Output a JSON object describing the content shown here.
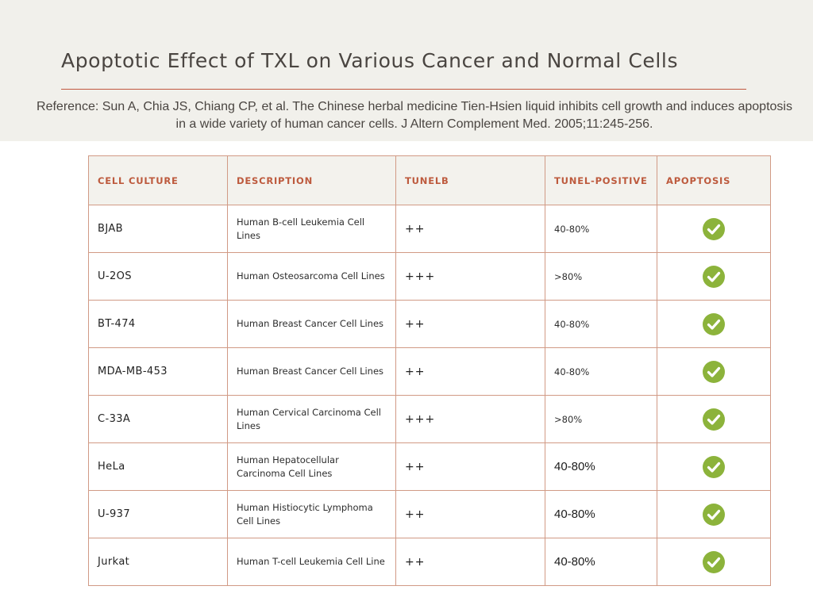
{
  "page": {
    "title": "Apoptotic Effect of TXL on Various Cancer and Normal Cells",
    "reference": "Reference: Sun A, Chia JS, Chiang CP, et al. The Chinese herbal medicine Tien-Hsien liquid inhibits cell growth and induces apoptosis in a wide variety of human cancer cells. J Altern Complement Med. 2005;11:245-256."
  },
  "table": {
    "headers": {
      "cell_culture": "CELL CULTURE",
      "description": "DESCRIPTION",
      "tunelb": "TUNELB",
      "tunel_positive": "TUNEL-POSITIVE",
      "apoptosis": "APOPTOSIS"
    },
    "rows": [
      {
        "cell": "BJAB",
        "description": "Human B-cell Leukemia Cell Lines",
        "tunelb": "++",
        "positive": "40-80%",
        "apoptosis": "check-icon"
      },
      {
        "cell": "U-2OS",
        "description": "Human Osteosarcoma Cell Lines",
        "tunelb": "+++",
        "positive": ">80%",
        "apoptosis": "check-icon"
      },
      {
        "cell": "BT-474",
        "description": "Human Breast Cancer Cell Lines",
        "tunelb": "++",
        "positive": "40-80%",
        "apoptosis": "check-icon"
      },
      {
        "cell": "MDA-MB-453",
        "description": "Human Breast Cancer Cell Lines",
        "tunelb": "++",
        "positive": "40-80%",
        "apoptosis": "check-icon"
      },
      {
        "cell": "C-33A",
        "description": "Human Cervical Carcinoma Cell Lines",
        "tunelb": "+++",
        "positive": ">80%",
        "apoptosis": "check-icon"
      },
      {
        "cell": "HeLa",
        "description": "Human Hepatocellular Carcinoma Cell Lines",
        "tunelb": "++",
        "positive": "40-80%",
        "apoptosis": "check-icon"
      },
      {
        "cell": "U-937",
        "description": "Human Histiocytic Lymphoma Cell Lines",
        "tunelb": "++",
        "positive": "40-80%",
        "apoptosis": "check-icon"
      },
      {
        "cell": "Jurkat",
        "description": "Human T-cell Leukemia Cell Line",
        "tunelb": "++",
        "positive": "40-80%",
        "apoptosis": "check-icon"
      }
    ]
  },
  "colors": {
    "header_band": "#f1f0eb",
    "accent": "#c1583f",
    "table_border": "#d19a85",
    "check_fill": "#8cb33b"
  }
}
